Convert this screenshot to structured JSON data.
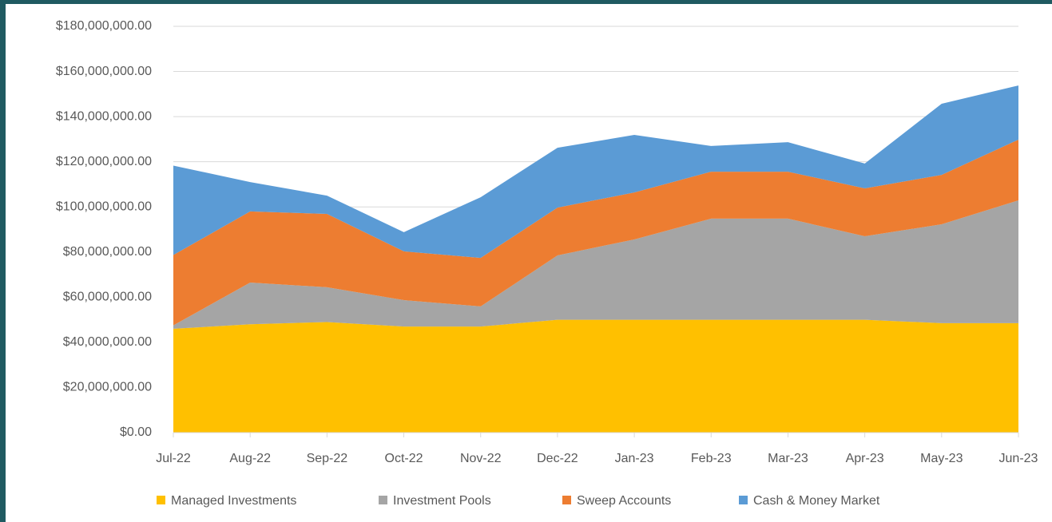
{
  "chart_data": {
    "type": "stacked_area",
    "categories": [
      "Jul-22",
      "Aug-22",
      "Sep-22",
      "Oct-22",
      "Nov-22",
      "Dec-22",
      "Jan-23",
      "Feb-23",
      "Mar-23",
      "Apr-23",
      "May-23",
      "Jun-23"
    ],
    "series": [
      {
        "name": "Managed Investments",
        "color": "#ffc000",
        "values": [
          46000000,
          48000000,
          49000000,
          47000000,
          47000000,
          50000000,
          50000000,
          50000000,
          50000000,
          50000000,
          48500000,
          48500000
        ]
      },
      {
        "name": "Investment Pools",
        "color": "#a5a5a5",
        "values": [
          1500000,
          18500000,
          15400000,
          11700000,
          8900000,
          28500000,
          35600000,
          44800000,
          44800000,
          37000000,
          43800000,
          54400000
        ]
      },
      {
        "name": "Sweep Accounts",
        "color": "#ed7d31",
        "values": [
          31200000,
          31500000,
          32500000,
          21600000,
          21500000,
          21200000,
          20800000,
          20800000,
          20800000,
          21200000,
          21900000,
          26900000
        ]
      },
      {
        "name": "Cash & Money Market",
        "color": "#5b9bd5",
        "values": [
          39600000,
          13000000,
          8100000,
          8500000,
          26900000,
          26500000,
          25500000,
          11400000,
          13100000,
          11000000,
          31500000,
          24000000
        ]
      }
    ],
    "ylim": [
      0,
      180000000
    ],
    "yticks": [
      {
        "value": 0,
        "label": "$0.00"
      },
      {
        "value": 20000000,
        "label": "$20,000,000.00"
      },
      {
        "value": 40000000,
        "label": "$40,000,000.00"
      },
      {
        "value": 60000000,
        "label": "$60,000,000.00"
      },
      {
        "value": 80000000,
        "label": "$80,000,000.00"
      },
      {
        "value": 100000000,
        "label": "$100,000,000.00"
      },
      {
        "value": 120000000,
        "label": "$120,000,000.00"
      },
      {
        "value": 140000000,
        "label": "$140,000,000.00"
      },
      {
        "value": 160000000,
        "label": "$160,000,000.00"
      },
      {
        "value": 180000000,
        "label": "$180,000,000.00"
      }
    ],
    "grid": true,
    "legend": "bottom"
  }
}
